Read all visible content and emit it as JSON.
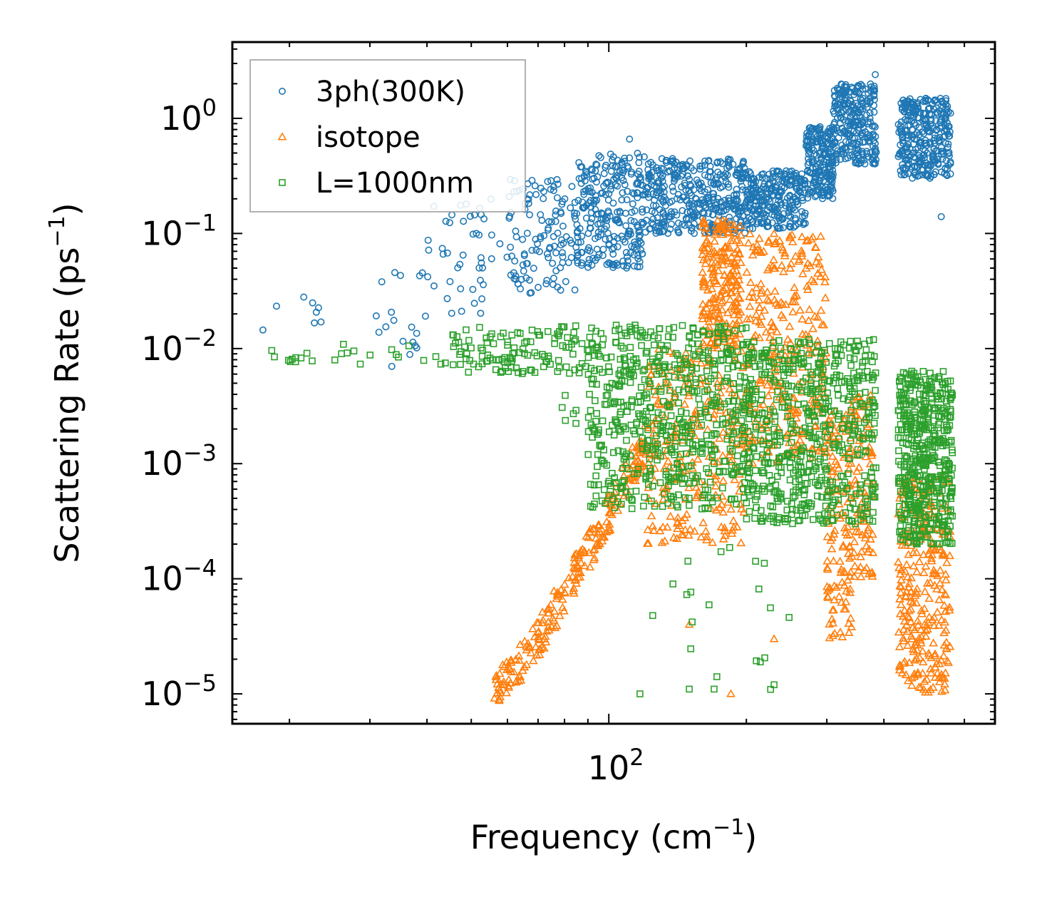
{
  "chart_data": {
    "type": "scatter",
    "title": "",
    "xlabel": "Frequency (cm",
    "xlabel_sup": "−1",
    "xlabel_end": ")",
    "ylabel": "Scattering Rate (ps",
    "ylabel_sup": "−1",
    "ylabel_end": ")",
    "xscale": "log",
    "yscale": "log",
    "xlim": [
      15,
      700
    ],
    "ylim": [
      5.5e-06,
      4.6
    ],
    "x_ticks": [
      {
        "value": 100,
        "base": "10",
        "exp": "2"
      }
    ],
    "y_ticks": [
      {
        "value": 1e-05,
        "base": "10",
        "exp": "−5"
      },
      {
        "value": 0.0001,
        "base": "10",
        "exp": "−4"
      },
      {
        "value": 0.001,
        "base": "10",
        "exp": "−3"
      },
      {
        "value": 0.01,
        "base": "10",
        "exp": "−2"
      },
      {
        "value": 0.1,
        "base": "10",
        "exp": "−1"
      },
      {
        "value": 1,
        "base": "10",
        "exp": "0"
      }
    ],
    "legend_position": "top-left",
    "series": [
      {
        "name": "3ph(300K)",
        "marker": "circle",
        "color": "#1f77b4",
        "clusters": [
          {
            "x": [
              17.5,
              26
            ],
            "y": [
              0.014,
              0.025
            ],
            "n": 6
          },
          {
            "x": [
              30,
              40
            ],
            "y": [
              0.007,
              0.06
            ],
            "n": 18
          },
          {
            "x": [
              40,
              60
            ],
            "y": [
              0.02,
              0.2
            ],
            "n": 45
          },
          {
            "x": [
              60,
              85
            ],
            "y": [
              0.03,
              0.3
            ],
            "n": 120
          },
          {
            "x": [
              85,
              120
            ],
            "y": [
              0.05,
              0.5
            ],
            "n": 260
          },
          {
            "x": [
              120,
              200
            ],
            "y": [
              0.1,
              0.45
            ],
            "n": 380
          },
          {
            "x": [
              200,
              270
            ],
            "y": [
              0.11,
              0.35
            ],
            "n": 260
          },
          {
            "x": [
              270,
              310
            ],
            "y": [
              0.2,
              0.85
            ],
            "n": 200
          },
          {
            "x": [
              310,
              385
            ],
            "y": [
              0.4,
              2.0
            ],
            "n": 260
          },
          {
            "x": [
              430,
              560
            ],
            "y": [
              0.3,
              1.5
            ],
            "n": 320
          }
        ],
        "points": [
          {
            "x": 111,
            "y": 0.66
          },
          {
            "x": 383,
            "y": 2.4
          },
          {
            "x": 534,
            "y": 0.14
          },
          {
            "x": 33.5,
            "y": 0.007
          },
          {
            "x": 17.5,
            "y": 0.0145
          },
          {
            "x": 21.5,
            "y": 0.028
          }
        ]
      },
      {
        "name": "isotope",
        "marker": "triangle",
        "color": "#ff7f0e",
        "clusters": [
          {
            "x": [
              56,
              70
            ],
            "y": [
              1e-05,
              3e-05
            ],
            "ramp": true,
            "n": 60
          },
          {
            "x": [
              70,
              95
            ],
            "y": [
              3e-05,
              0.00025
            ],
            "ramp": true,
            "n": 100
          },
          {
            "x": [
              95,
              120
            ],
            "y": [
              0.00025,
              0.0015
            ],
            "ramp": true,
            "n": 80
          },
          {
            "x": [
              120,
              200
            ],
            "y": [
              0.0002,
              0.01
            ],
            "n": 260
          },
          {
            "x": [
              160,
              195
            ],
            "y": [
              0.01,
              0.13
            ],
            "n": 220
          },
          {
            "x": [
              200,
              300
            ],
            "y": [
              0.001,
              0.1
            ],
            "n": 300
          },
          {
            "x": [
              300,
              340
            ],
            "y": [
              3e-05,
              0.003
            ],
            "n": 120
          },
          {
            "x": [
              340,
              380
            ],
            "y": [
              0.0001,
              0.004
            ],
            "n": 90
          },
          {
            "x": [
              430,
              560
            ],
            "y": [
              1e-05,
              0.0008
            ],
            "n": 280
          }
        ],
        "points": [
          {
            "x": 185,
            "y": 1e-05
          },
          {
            "x": 150,
            "y": 4e-05
          },
          {
            "x": 230,
            "y": 3e-05
          }
        ]
      },
      {
        "name": "L=1000nm",
        "marker": "square",
        "color": "#2ca02c",
        "clusters": [
          {
            "x": [
              17.5,
              45
            ],
            "y": [
              0.0072,
              0.011
            ],
            "n": 25
          },
          {
            "x": [
              45,
              90
            ],
            "y": [
              0.006,
              0.016
            ],
            "n": 120
          },
          {
            "x": [
              78,
              85
            ],
            "y": [
              0.0022,
              0.004
            ],
            "n": 6
          },
          {
            "x": [
              90,
              200
            ],
            "y": [
              0.0004,
              0.016
            ],
            "n": 600
          },
          {
            "x": [
              200,
              385
            ],
            "y": [
              0.0003,
              0.012
            ],
            "n": 600
          },
          {
            "x": [
              430,
              565
            ],
            "y": [
              0.0002,
              0.0065
            ],
            "n": 500
          },
          {
            "x": [
              120,
              250
            ],
            "y": [
              1e-05,
              0.0002
            ],
            "n": 20
          }
        ],
        "points": [
          {
            "x": 117,
            "y": 1e-05
          },
          {
            "x": 150,
            "y": 1.1e-05
          },
          {
            "x": 170,
            "y": 1.1e-05
          },
          {
            "x": 230,
            "y": 1.2e-05
          }
        ]
      }
    ]
  }
}
